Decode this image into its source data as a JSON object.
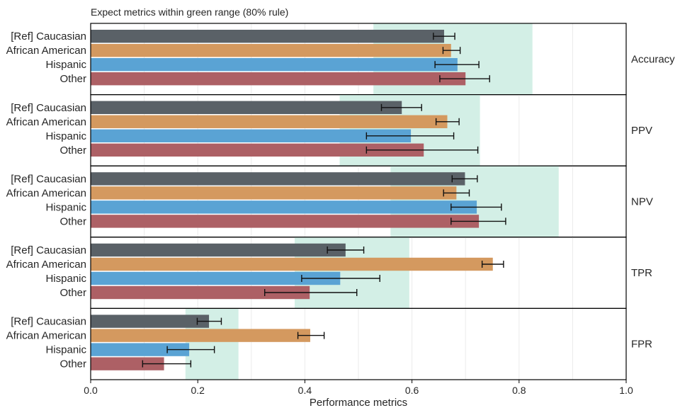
{
  "chart_data": {
    "type": "bar",
    "orientation": "horizontal",
    "title": "Expect metrics within green range (80% rule)",
    "xlabel": "Performance metrics",
    "xlim": [
      0.0,
      1.0
    ],
    "xticks": [
      "0.0",
      "0.2",
      "0.4",
      "0.6",
      "0.8",
      "1.0"
    ],
    "grid": true,
    "groups": [
      "[Ref] Caucasian",
      "African American",
      "Hispanic",
      "Other"
    ],
    "colors": [
      "#5a6167",
      "#d4995f",
      "#5aa3d4",
      "#ad6065"
    ],
    "range_color": "#d3efe6",
    "panels": [
      {
        "metric": "Accuracy",
        "range": [
          0.528,
          0.825
        ],
        "values": [
          0.66,
          0.673,
          0.685,
          0.7
        ],
        "error_low": [
          0.64,
          0.658,
          0.643,
          0.652
        ],
        "error_high": [
          0.68,
          0.69,
          0.725,
          0.745
        ]
      },
      {
        "metric": "PPV",
        "range": [
          0.465,
          0.727
        ],
        "values": [
          0.581,
          0.666,
          0.598,
          0.622
        ],
        "error_low": [
          0.543,
          0.645,
          0.515,
          0.515
        ],
        "error_high": [
          0.618,
          0.688,
          0.678,
          0.723
        ]
      },
      {
        "metric": "NPV",
        "range": [
          0.56,
          0.874
        ],
        "values": [
          0.699,
          0.683,
          0.721,
          0.725
        ],
        "error_low": [
          0.675,
          0.659,
          0.673,
          0.673
        ],
        "error_high": [
          0.722,
          0.707,
          0.767,
          0.775
        ]
      },
      {
        "metric": "TPR",
        "range": [
          0.381,
          0.595
        ],
        "values": [
          0.476,
          0.751,
          0.466,
          0.409
        ],
        "error_low": [
          0.442,
          0.731,
          0.394,
          0.325
        ],
        "error_high": [
          0.51,
          0.771,
          0.54,
          0.497
        ]
      },
      {
        "metric": "FPR",
        "range": [
          0.177,
          0.276
        ],
        "values": [
          0.221,
          0.41,
          0.184,
          0.137
        ],
        "error_low": [
          0.199,
          0.387,
          0.143,
          0.097
        ],
        "error_high": [
          0.244,
          0.436,
          0.231,
          0.187
        ]
      }
    ]
  }
}
